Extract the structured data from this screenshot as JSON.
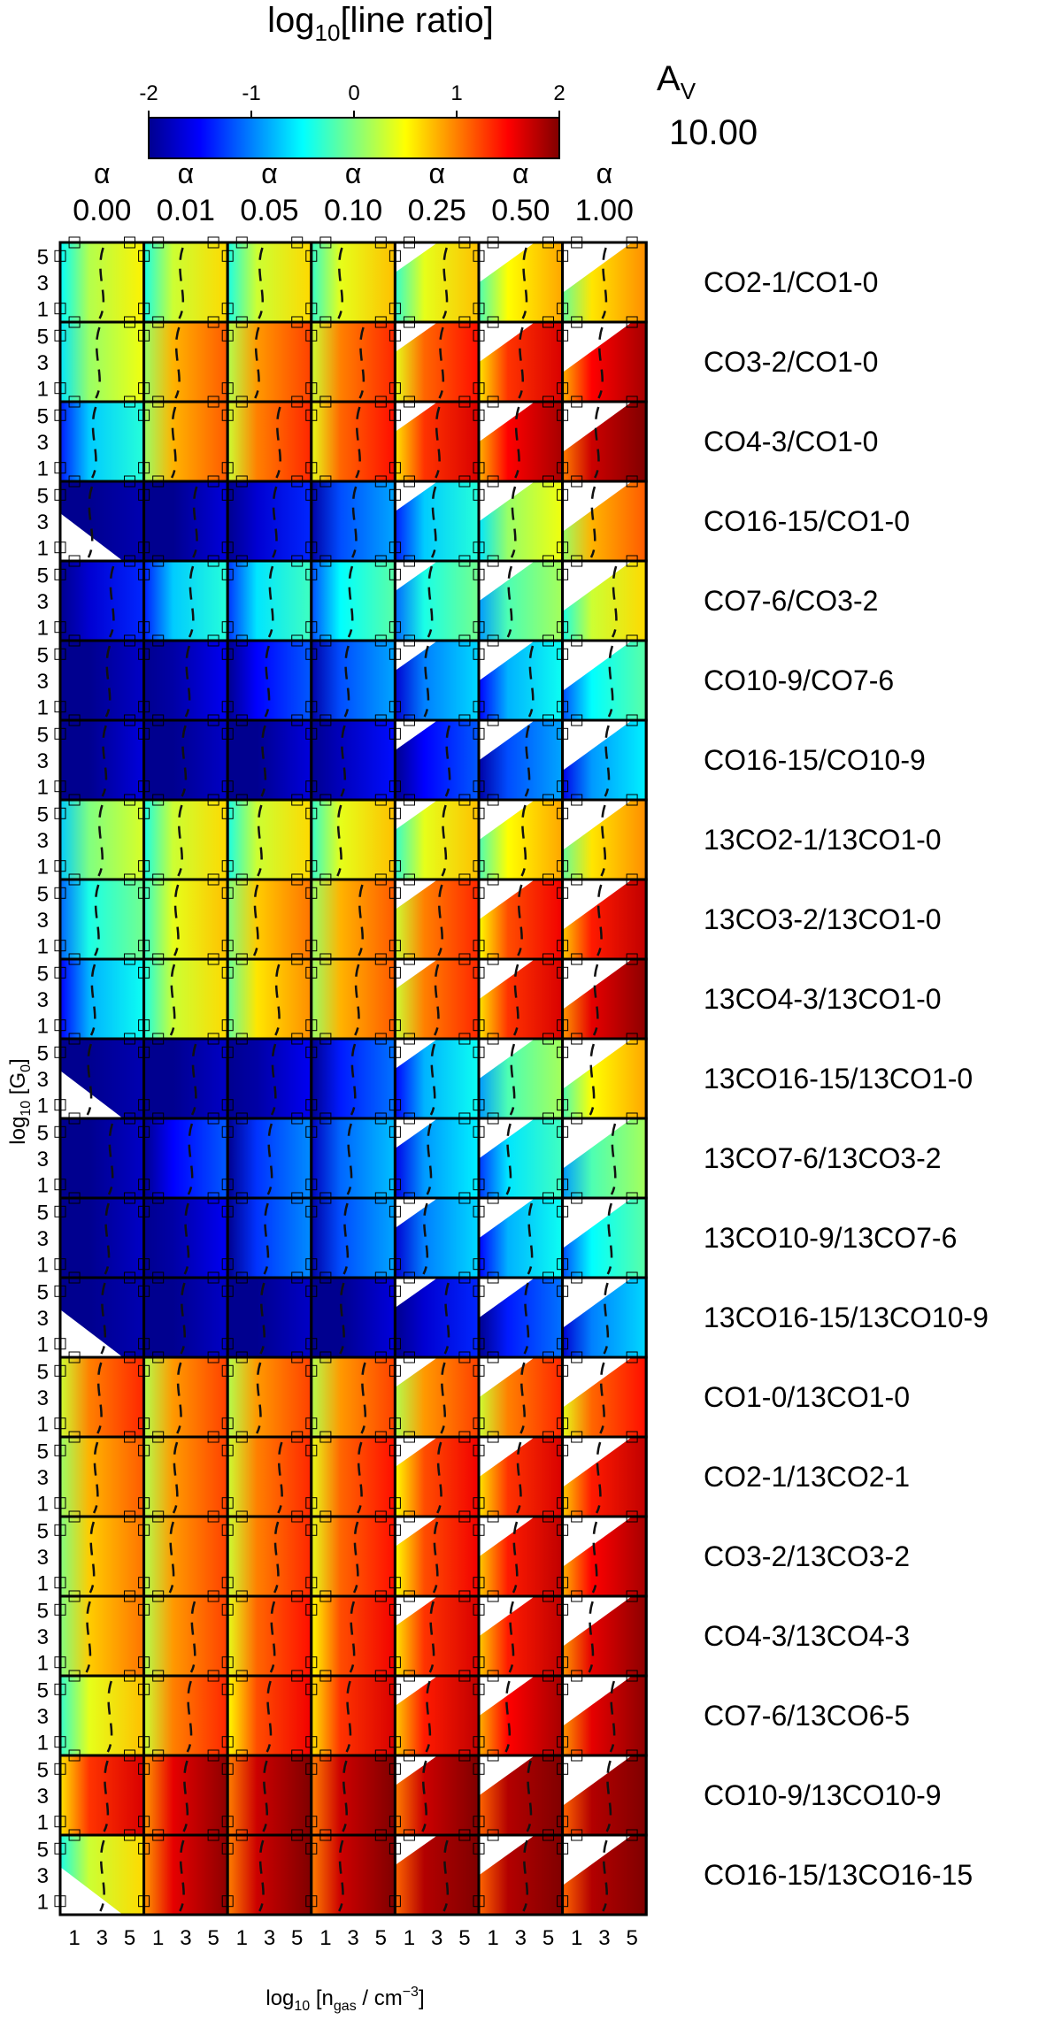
{
  "chart_data": {
    "type": "heatmap",
    "title": "log10[line ratio]",
    "colorbar": {
      "label": "log10[line ratio]",
      "ticks": [
        -2,
        -1,
        0,
        1,
        2
      ],
      "tick_labels": [
        "-2",
        "-1",
        "0",
        "1",
        "2"
      ],
      "range": [
        -2,
        2
      ],
      "colormap": [
        "#00008f",
        "#0000ff",
        "#0080ff",
        "#00ffff",
        "#80ff80",
        "#ffff00",
        "#ff8000",
        "#ff0000",
        "#800000"
      ]
    },
    "parameter": {
      "label": "A_V",
      "label_main": "A",
      "label_sub": "V",
      "value": "10.00"
    },
    "columns": [
      {
        "symbol": "α",
        "value": "0.00"
      },
      {
        "symbol": "α",
        "value": "0.01"
      },
      {
        "symbol": "α",
        "value": "0.05"
      },
      {
        "symbol": "α",
        "value": "0.10"
      },
      {
        "symbol": "α",
        "value": "0.25"
      },
      {
        "symbol": "α",
        "value": "0.50"
      },
      {
        "symbol": "α",
        "value": "1.00"
      }
    ],
    "rows": [
      "CO2-1/CO1-0",
      "CO3-2/CO1-0",
      "CO4-3/CO1-0",
      "CO16-15/CO1-0",
      "CO7-6/CO3-2",
      "CO10-9/CO7-6",
      "CO16-15/CO10-9",
      "13CO2-1/13CO1-0",
      "13CO3-2/13CO1-0",
      "13CO4-3/13CO1-0",
      "13CO16-15/13CO1-0",
      "13CO7-6/13CO3-2",
      "13CO10-9/13CO7-6",
      "13CO16-15/13CO10-9",
      "CO1-0/13CO1-0",
      "CO2-1/13CO2-1",
      "CO3-2/13CO3-2",
      "CO4-3/13CO4-3",
      "CO7-6/13CO6-5",
      "CO10-9/13CO10-9",
      "CO16-15/13CO16-15"
    ],
    "x_axis": {
      "label_prefix": "log",
      "label_base": "10",
      "label_mid": " [n",
      "label_sub": "gas",
      "label_mid2": " / cm",
      "label_sup": "−3",
      "label_end": "]",
      "ticks": [
        "1",
        "3",
        "5"
      ],
      "range": [
        0,
        6
      ]
    },
    "y_axis": {
      "label_prefix": "log",
      "label_base": "10",
      "label_mid": " [G",
      "label_sub": "0",
      "label_end": "]",
      "ticks": [
        "5",
        "3",
        "1"
      ],
      "range": [
        0,
        6
      ]
    },
    "row_summary_log10_ratio": [
      [
        0.4,
        0.5,
        0.5,
        0.6,
        0.6,
        0.7,
        0.8
      ],
      [
        0.3,
        1.0,
        1.1,
        1.2,
        1.3,
        1.5,
        1.7
      ],
      [
        -0.5,
        1.0,
        1.2,
        1.3,
        1.5,
        1.7,
        1.9
      ],
      [
        -2.0,
        -1.8,
        -1.5,
        -1.0,
        -0.5,
        0.3,
        1.0
      ],
      [
        -1.5,
        -0.5,
        -0.4,
        -0.3,
        -0.2,
        0.0,
        0.5
      ],
      [
        -1.9,
        -1.7,
        -1.3,
        -1.0,
        -0.8,
        -0.6,
        -0.3
      ],
      [
        -1.8,
        -1.9,
        -1.8,
        -1.6,
        -1.3,
        -1.0,
        -0.7
      ],
      [
        0.2,
        0.5,
        0.5,
        0.6,
        0.6,
        0.7,
        0.8
      ],
      [
        -0.2,
        0.6,
        0.9,
        1.0,
        1.2,
        1.4,
        1.6
      ],
      [
        -0.6,
        0.5,
        0.8,
        1.0,
        1.2,
        1.5,
        1.8
      ],
      [
        -2.0,
        -1.9,
        -1.7,
        -1.2,
        -0.6,
        0.0,
        0.7
      ],
      [
        -1.9,
        -1.3,
        -1.1,
        -0.9,
        -0.7,
        -0.4,
        0.0
      ],
      [
        -1.9,
        -1.7,
        -1.1,
        -1.0,
        -0.8,
        -0.6,
        -0.3
      ],
      [
        -2.0,
        -1.9,
        -1.9,
        -1.8,
        -1.5,
        -1.2,
        -0.8
      ],
      [
        1.2,
        1.1,
        1.1,
        1.1,
        1.1,
        1.2,
        1.3
      ],
      [
        1.0,
        1.1,
        1.2,
        1.3,
        1.4,
        1.5,
        1.6
      ],
      [
        0.9,
        1.1,
        1.2,
        1.3,
        1.4,
        1.6,
        1.7
      ],
      [
        0.9,
        1.1,
        1.3,
        1.4,
        1.5,
        1.6,
        1.8
      ],
      [
        0.6,
        1.2,
        1.4,
        1.5,
        1.6,
        1.7,
        1.8
      ],
      [
        1.5,
        1.8,
        1.9,
        1.9,
        1.9,
        2.0,
        2.0
      ],
      [
        0.5,
        1.8,
        1.9,
        1.9,
        2.0,
        2.0,
        2.0
      ]
    ]
  }
}
